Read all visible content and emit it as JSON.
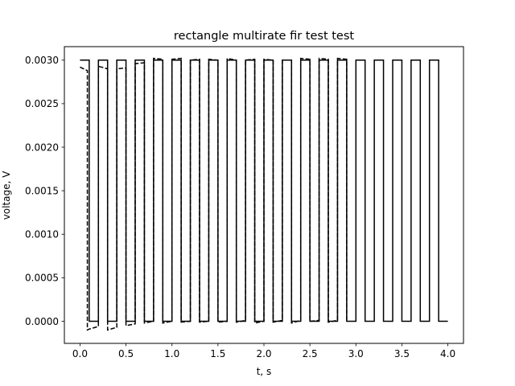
{
  "chart_data": {
    "type": "line",
    "title": "rectangle multirate fir test test",
    "xlabel": "t, s",
    "ylabel": "voltage, V",
    "xlim": [
      -0.17,
      4.17
    ],
    "ylim": [
      -0.000254,
      0.003155
    ],
    "grid": false,
    "legend": "none",
    "xticks": [
      0.0,
      0.5,
      1.0,
      1.5,
      2.0,
      2.5,
      3.0,
      3.5,
      4.0
    ],
    "xtick_labels": [
      "0.0",
      "0.5",
      "1.0",
      "1.5",
      "2.0",
      "2.5",
      "3.0",
      "3.5",
      "4.0"
    ],
    "yticks": [
      0.0,
      0.0005,
      0.001,
      0.0015,
      0.002,
      0.0025,
      0.003
    ],
    "ytick_labels": [
      "0.0000",
      "0.0005",
      "0.0010",
      "0.0015",
      "0.0020",
      "0.0025",
      "0.0030"
    ],
    "series": [
      {
        "style": "solid",
        "color": "#000000",
        "high": 0.003,
        "low": 0.0,
        "period": 0.2,
        "duty": 0.5,
        "t_start": 0.0,
        "t_end": 4.0
      },
      {
        "style": "dashed",
        "color": "#000000",
        "x": [
          0.0,
          0.08,
          0.08,
          0.1,
          0.2,
          0.2,
          0.3,
          0.3,
          0.4,
          0.4,
          0.5,
          0.5,
          0.6,
          0.6,
          0.7,
          0.7,
          0.8,
          0.8,
          0.9,
          0.9,
          1.0,
          1.0,
          1.1,
          1.1,
          1.2,
          1.2,
          1.3,
          1.3,
          1.4,
          1.4,
          1.5,
          1.5,
          1.6,
          1.6,
          1.7,
          1.7,
          1.8,
          1.8,
          1.9,
          1.9,
          2.0,
          2.0,
          2.1,
          2.1,
          2.2,
          2.2,
          2.3,
          2.3,
          2.4,
          2.4,
          2.5,
          2.5,
          2.6,
          2.6,
          2.7,
          2.7,
          2.8,
          2.8,
          2.9,
          2.9
        ],
        "y": [
          0.00292,
          0.00288,
          -0.0001,
          -9e-05,
          -6e-05,
          0.00293,
          0.0029,
          -0.0001,
          -7e-05,
          0.0029,
          0.00291,
          -5e-05,
          -3e-05,
          0.00296,
          0.00297,
          -2e-05,
          0.0,
          0.00302,
          0.00301,
          -2e-05,
          0.0,
          0.00301,
          0.00302,
          -1e-05,
          0.0,
          0.003,
          0.00301,
          -1e-05,
          0.0,
          0.00301,
          0.003,
          -1e-05,
          0.0,
          0.00302,
          0.003,
          -1e-05,
          1e-05,
          0.003,
          0.00301,
          -2e-05,
          0.0,
          0.00301,
          0.003,
          -1e-05,
          1e-05,
          0.003,
          0.003,
          -2e-05,
          1e-05,
          0.00302,
          0.00301,
          0.0,
          1e-05,
          0.00302,
          0.00301,
          -1e-05,
          1e-05,
          0.00302,
          0.00301,
          0.0
        ]
      }
    ]
  }
}
